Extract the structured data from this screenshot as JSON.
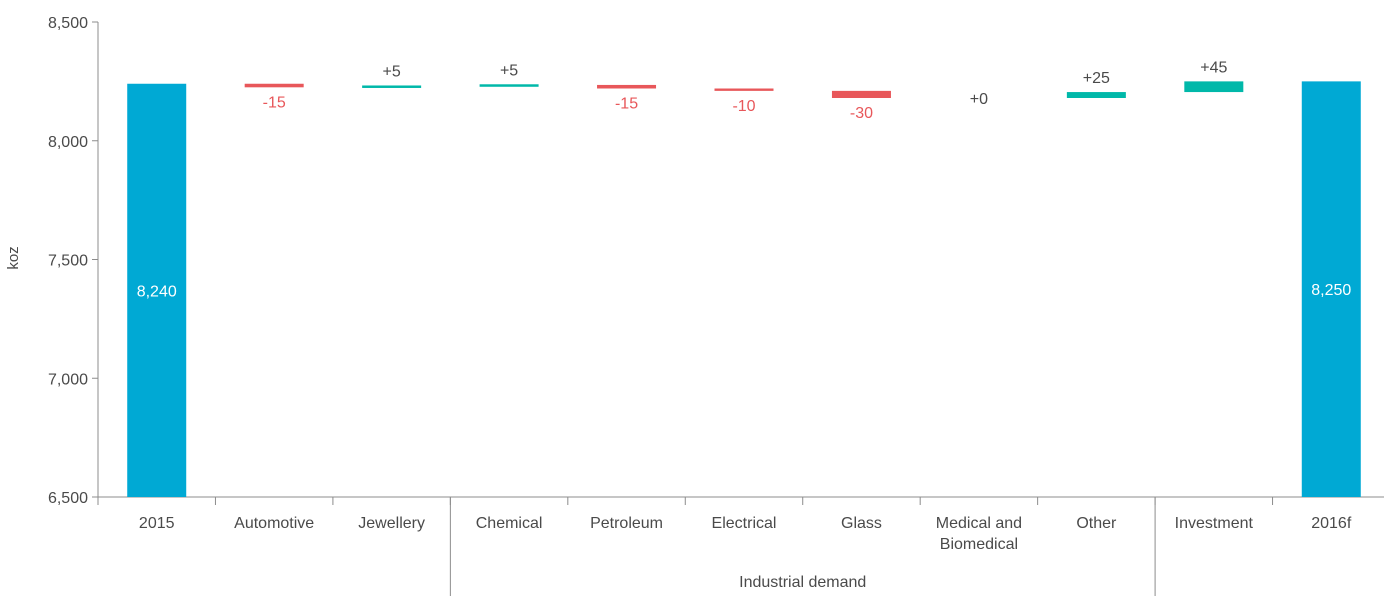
{
  "chart_data": {
    "type": "bar",
    "subtype": "waterfall",
    "ylabel": "koz",
    "ylim": [
      6500,
      8500
    ],
    "yticks": [
      6500,
      7000,
      7500,
      8000,
      8500
    ],
    "ytick_labels": [
      "6,500",
      "7,000",
      "7,500",
      "8,000",
      "8,500"
    ],
    "grid": false,
    "categories": [
      {
        "label": "2015",
        "kind": "total",
        "value": 8240,
        "display": "8,240"
      },
      {
        "label": "Automotive",
        "kind": "delta",
        "value": -15,
        "display": "-15"
      },
      {
        "label": "Jewellery",
        "kind": "delta",
        "value": 5,
        "display": "+5"
      },
      {
        "label": "Chemical",
        "kind": "delta",
        "value": 5,
        "display": "+5"
      },
      {
        "label": "Petroleum",
        "kind": "delta",
        "value": -15,
        "display": "-15"
      },
      {
        "label": "Electrical",
        "kind": "delta",
        "value": -10,
        "display": "-10"
      },
      {
        "label": "Glass",
        "kind": "delta",
        "value": -30,
        "display": "-30"
      },
      {
        "label": "Medical and Biomedical",
        "label_lines": [
          "Medical and",
          "Biomedical"
        ],
        "kind": "delta",
        "value": 0,
        "display": "+0"
      },
      {
        "label": "Other",
        "kind": "delta",
        "value": 25,
        "display": "+25"
      },
      {
        "label": "Investment",
        "kind": "delta",
        "value": 45,
        "display": "+45"
      },
      {
        "label": "2016f",
        "kind": "total",
        "value": 8250,
        "display": "8,250"
      }
    ],
    "group_label": {
      "text": "Industrial demand",
      "from_index": 3,
      "to_index": 8
    },
    "colors": {
      "total": "#00a9d4",
      "increase": "#00b8a9",
      "decrease": "#e8575a",
      "total_label": "#ffffff",
      "neutral_label": "#4a4a4a",
      "axis": "#8c8c8c"
    }
  }
}
